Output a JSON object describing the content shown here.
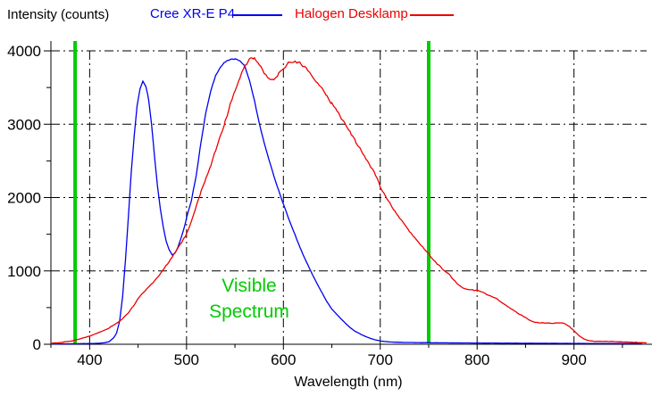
{
  "legend": {
    "series": [
      {
        "label": "Cree XR-E P4",
        "color": "#0000EE"
      },
      {
        "label": "Halogen Desklamp",
        "color": "#EE0000"
      }
    ]
  },
  "annotation": {
    "line1": "Visible",
    "line2": "Spectrum",
    "color": "#00CC00"
  },
  "chart_data": {
    "type": "line",
    "title": "",
    "xlabel": "Wavelength (nm)",
    "ylabel": "Intensity (counts)",
    "xlim": [
      360,
      975
    ],
    "ylim": [
      0,
      4134
    ],
    "x_ticks": [
      400,
      500,
      600,
      700,
      800,
      900
    ],
    "x_minor_ticks": [
      360,
      450,
      550,
      650,
      750,
      850,
      950
    ],
    "y_ticks": [
      0,
      1000,
      2000,
      3000,
      4000
    ],
    "y_minor_ticks": [
      500,
      1500,
      2500,
      3500
    ],
    "grid": "dash-dot",
    "grid_color": "#000000",
    "legend_position": "top",
    "markers": [
      {
        "type": "vline",
        "x": 385,
        "color": "#00CC00"
      },
      {
        "type": "vline",
        "x": 750,
        "color": "#00CC00"
      }
    ],
    "series": [
      {
        "name": "Cree XR-E P4",
        "color": "#0000EE",
        "noise": 14,
        "points": [
          [
            360,
            6
          ],
          [
            380,
            6
          ],
          [
            400,
            10
          ],
          [
            410,
            14
          ],
          [
            415,
            20
          ],
          [
            420,
            35
          ],
          [
            425,
            90
          ],
          [
            428,
            160
          ],
          [
            431,
            320
          ],
          [
            434,
            650
          ],
          [
            437,
            1150
          ],
          [
            440,
            1750
          ],
          [
            443,
            2350
          ],
          [
            446,
            2850
          ],
          [
            449,
            3250
          ],
          [
            452,
            3480
          ],
          [
            455,
            3590
          ],
          [
            458,
            3520
          ],
          [
            461,
            3330
          ],
          [
            464,
            2980
          ],
          [
            467,
            2560
          ],
          [
            470,
            2160
          ],
          [
            473,
            1840
          ],
          [
            476,
            1600
          ],
          [
            479,
            1400
          ],
          [
            482,
            1290
          ],
          [
            485,
            1220
          ],
          [
            488,
            1240
          ],
          [
            491,
            1320
          ],
          [
            494,
            1430
          ],
          [
            497,
            1560
          ],
          [
            500,
            1720
          ],
          [
            505,
            1960
          ],
          [
            510,
            2300
          ],
          [
            515,
            2760
          ],
          [
            520,
            3160
          ],
          [
            525,
            3460
          ],
          [
            530,
            3660
          ],
          [
            535,
            3780
          ],
          [
            540,
            3850
          ],
          [
            545,
            3880
          ],
          [
            550,
            3890
          ],
          [
            555,
            3870
          ],
          [
            560,
            3800
          ],
          [
            565,
            3600
          ],
          [
            570,
            3330
          ],
          [
            575,
            3020
          ],
          [
            580,
            2760
          ],
          [
            585,
            2520
          ],
          [
            590,
            2300
          ],
          [
            595,
            2100
          ],
          [
            600,
            1910
          ],
          [
            605,
            1730
          ],
          [
            610,
            1560
          ],
          [
            615,
            1390
          ],
          [
            620,
            1230
          ],
          [
            625,
            1090
          ],
          [
            630,
            950
          ],
          [
            635,
            820
          ],
          [
            640,
            700
          ],
          [
            645,
            580
          ],
          [
            650,
            480
          ],
          [
            655,
            410
          ],
          [
            660,
            340
          ],
          [
            665,
            275
          ],
          [
            670,
            215
          ],
          [
            675,
            170
          ],
          [
            680,
            135
          ],
          [
            685,
            105
          ],
          [
            690,
            80
          ],
          [
            695,
            60
          ],
          [
            700,
            45
          ],
          [
            710,
            32
          ],
          [
            720,
            26
          ],
          [
            740,
            22
          ],
          [
            760,
            20
          ],
          [
            800,
            17
          ],
          [
            850,
            14
          ],
          [
            900,
            12
          ],
          [
            940,
            10
          ],
          [
            970,
            10
          ]
        ]
      },
      {
        "name": "Halogen Desklamp",
        "color": "#EE0000",
        "noise": 40,
        "points": [
          [
            360,
            14
          ],
          [
            370,
            24
          ],
          [
            380,
            42
          ],
          [
            390,
            72
          ],
          [
            400,
            112
          ],
          [
            410,
            162
          ],
          [
            420,
            222
          ],
          [
            430,
            305
          ],
          [
            435,
            360
          ],
          [
            440,
            430
          ],
          [
            445,
            520
          ],
          [
            450,
            620
          ],
          [
            455,
            700
          ],
          [
            460,
            765
          ],
          [
            465,
            835
          ],
          [
            470,
            915
          ],
          [
            475,
            1000
          ],
          [
            480,
            1090
          ],
          [
            485,
            1185
          ],
          [
            490,
            1285
          ],
          [
            495,
            1390
          ],
          [
            500,
            1500
          ],
          [
            505,
            1680
          ],
          [
            510,
            1880
          ],
          [
            515,
            2080
          ],
          [
            520,
            2260
          ],
          [
            525,
            2440
          ],
          [
            530,
            2640
          ],
          [
            535,
            2840
          ],
          [
            540,
            3040
          ],
          [
            545,
            3260
          ],
          [
            550,
            3460
          ],
          [
            555,
            3640
          ],
          [
            560,
            3790
          ],
          [
            565,
            3895
          ],
          [
            570,
            3890
          ],
          [
            575,
            3820
          ],
          [
            580,
            3700
          ],
          [
            585,
            3625
          ],
          [
            590,
            3620
          ],
          [
            595,
            3680
          ],
          [
            600,
            3760
          ],
          [
            605,
            3830
          ],
          [
            610,
            3860
          ],
          [
            615,
            3845
          ],
          [
            620,
            3800
          ],
          [
            625,
            3740
          ],
          [
            630,
            3660
          ],
          [
            635,
            3570
          ],
          [
            640,
            3480
          ],
          [
            645,
            3380
          ],
          [
            650,
            3280
          ],
          [
            655,
            3180
          ],
          [
            660,
            3080
          ],
          [
            665,
            2975
          ],
          [
            670,
            2865
          ],
          [
            675,
            2755
          ],
          [
            680,
            2645
          ],
          [
            685,
            2535
          ],
          [
            690,
            2425
          ],
          [
            695,
            2315
          ],
          [
            700,
            2150
          ],
          [
            705,
            2030
          ],
          [
            710,
            1920
          ],
          [
            715,
            1820
          ],
          [
            720,
            1720
          ],
          [
            725,
            1630
          ],
          [
            730,
            1545
          ],
          [
            735,
            1465
          ],
          [
            740,
            1385
          ],
          [
            745,
            1305
          ],
          [
            750,
            1230
          ],
          [
            755,
            1150
          ],
          [
            760,
            1080
          ],
          [
            765,
            1020
          ],
          [
            770,
            970
          ],
          [
            775,
            890
          ],
          [
            780,
            815
          ],
          [
            785,
            770
          ],
          [
            790,
            750
          ],
          [
            795,
            740
          ],
          [
            800,
            735
          ],
          [
            805,
            710
          ],
          [
            810,
            680
          ],
          [
            815,
            655
          ],
          [
            820,
            620
          ],
          [
            825,
            575
          ],
          [
            830,
            528
          ],
          [
            835,
            482
          ],
          [
            840,
            442
          ],
          [
            845,
            402
          ],
          [
            850,
            362
          ],
          [
            855,
            320
          ],
          [
            860,
            300
          ],
          [
            865,
            292
          ],
          [
            870,
            288
          ],
          [
            875,
            286
          ],
          [
            880,
            288
          ],
          [
            885,
            292
          ],
          [
            890,
            283
          ],
          [
            895,
            245
          ],
          [
            900,
            185
          ],
          [
            905,
            120
          ],
          [
            910,
            75
          ],
          [
            915,
            50
          ],
          [
            920,
            42
          ],
          [
            930,
            40
          ],
          [
            940,
            37
          ],
          [
            950,
            33
          ],
          [
            960,
            27
          ],
          [
            970,
            22
          ],
          [
            975,
            20
          ]
        ]
      }
    ]
  }
}
